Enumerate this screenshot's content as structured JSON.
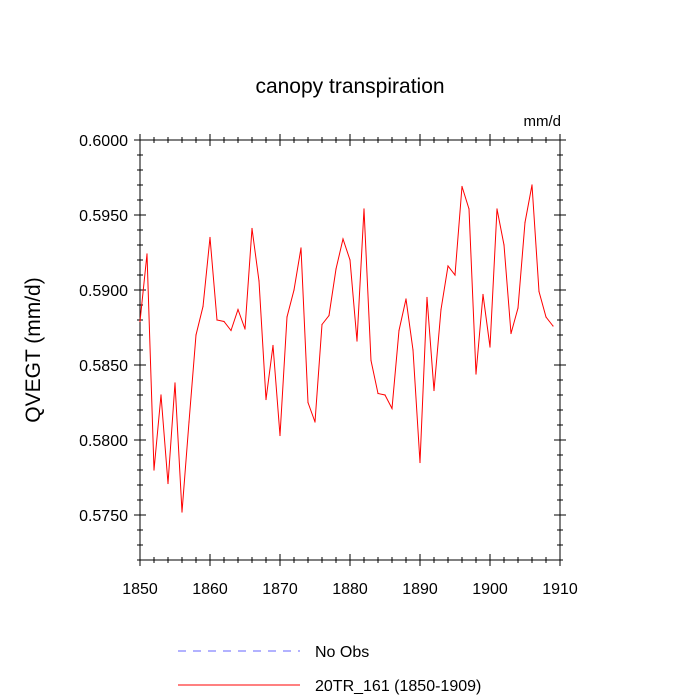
{
  "chart_data": {
    "type": "line",
    "title": "canopy transpiration",
    "units": "mm/d",
    "xlabel": "",
    "ylabel": "QVEGT  (mm/d)",
    "xlim": [
      1850,
      1910
    ],
    "ylim": [
      0.572,
      0.6
    ],
    "xticks": [
      1850,
      1860,
      1870,
      1880,
      1890,
      1900,
      1910
    ],
    "xtick_labels": [
      "1850",
      "1860",
      "1870",
      "1880",
      "1890",
      "1900",
      "1910"
    ],
    "yticks": [
      0.575,
      0.58,
      0.585,
      0.59,
      0.595,
      0.6
    ],
    "ytick_labels": [
      "0.5750",
      "0.5800",
      "0.5850",
      "0.5900",
      "0.5950",
      "0.6000"
    ],
    "series": [
      {
        "name": "No Obs",
        "color": "#6666ff",
        "dash": true,
        "x": [],
        "values": []
      },
      {
        "name": "20TR_161 (1850-1909)",
        "color": "#ff0000",
        "dash": false,
        "x": [
          1850,
          1851,
          1852,
          1853,
          1854,
          1855,
          1856,
          1857,
          1858,
          1859,
          1860,
          1861,
          1862,
          1863,
          1864,
          1865,
          1866,
          1867,
          1868,
          1869,
          1870,
          1871,
          1872,
          1873,
          1874,
          1875,
          1876,
          1877,
          1878,
          1879,
          1880,
          1881,
          1882,
          1883,
          1884,
          1885,
          1886,
          1887,
          1888,
          1889,
          1890,
          1891,
          1892,
          1893,
          1894,
          1895,
          1896,
          1897,
          1898,
          1899,
          1900,
          1901,
          1902,
          1903,
          1904,
          1905,
          1906,
          1907,
          1908,
          1909
        ],
        "values": [
          0.5879,
          0.5924,
          0.578,
          0.583,
          0.5771,
          0.5838,
          0.5752,
          0.5812,
          0.587,
          0.5889,
          0.5935,
          0.588,
          0.5879,
          0.5873,
          0.5887,
          0.5874,
          0.5941,
          0.5906,
          0.5827,
          0.5863,
          0.5803,
          0.5882,
          0.59,
          0.5928,
          0.5825,
          0.5812,
          0.5877,
          0.5883,
          0.5914,
          0.5934,
          0.592,
          0.5866,
          0.5954,
          0.5853,
          0.5831,
          0.583,
          0.5821,
          0.5873,
          0.5894,
          0.586,
          0.5785,
          0.5895,
          0.5833,
          0.5887,
          0.5916,
          0.591,
          0.5969,
          0.5954,
          0.5844,
          0.5897,
          0.5862,
          0.5954,
          0.593,
          0.5871,
          0.5888,
          0.5945,
          0.597,
          0.5899,
          0.5882,
          0.5876
        ]
      }
    ],
    "legend": "bottom-center"
  }
}
